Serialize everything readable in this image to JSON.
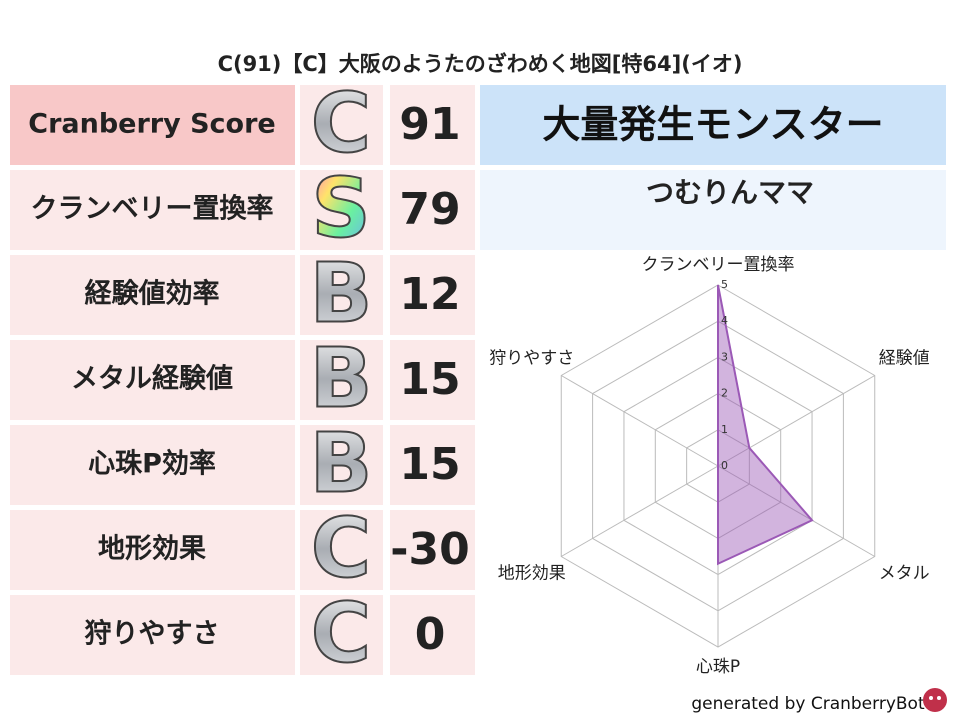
{
  "title": "C(91)【C】大阪のようたのざわめく地図[特64](イオ)",
  "score_table": {
    "rows": [
      {
        "label": "Cranberry Score",
        "grade": "C",
        "value": 91
      },
      {
        "label": "クランベリー置換率",
        "grade": "S",
        "value": 79
      },
      {
        "label": "経験値効率",
        "grade": "B",
        "value": 12
      },
      {
        "label": "メタル経験値",
        "grade": "B",
        "value": 15
      },
      {
        "label": "心珠P効率",
        "grade": "B",
        "value": 15
      },
      {
        "label": "地形効果",
        "grade": "C",
        "value": -30
      },
      {
        "label": "狩りやすさ",
        "grade": "C",
        "value": 0
      }
    ]
  },
  "monster_header": "大量発生モンスター",
  "monster_name": "つむりんママ",
  "chart_data": {
    "type": "radar",
    "categories": [
      "クランベリー置換率",
      "経験値",
      "メタル",
      "心珠P",
      "地形効果",
      "狩りやすさ"
    ],
    "values": [
      5,
      1,
      3,
      2.7,
      0,
      0
    ],
    "rlim": [
      0,
      5
    ],
    "rticks": [
      0,
      1,
      2,
      3,
      4,
      5
    ],
    "color": "#9b59b6"
  },
  "footer": "generated by CranberryBot"
}
